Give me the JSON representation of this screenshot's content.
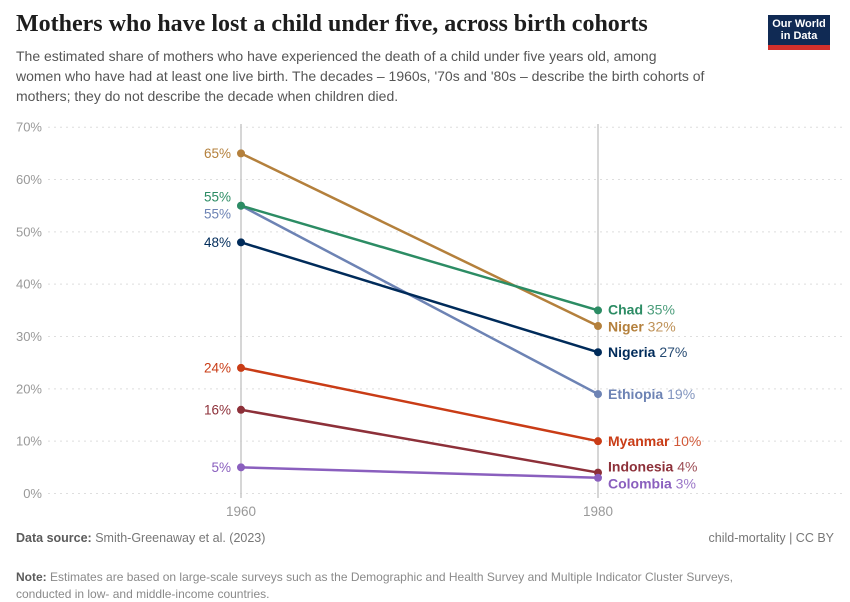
{
  "header": {
    "title": "Mothers who have lost a child under five, across birth cohorts",
    "subtitle": "The estimated share of mothers who have experienced the death of a child under five years old, among\nwomen who have had at least one live birth. The decades – 1960s, '70s and '80s – describe the birth cohorts of\nmothers; they do not describe the decade when children died.",
    "logo": {
      "line1": "Our World",
      "line2": "in Data",
      "bg_color": "#102a54",
      "bar_color": "#d2302c"
    }
  },
  "chart_data": {
    "type": "line",
    "title": "Mothers who have lost a child under five, across birth cohorts",
    "x": [
      1960,
      1980
    ],
    "x_tick_labels": [
      "1960",
      "1980"
    ],
    "series": [
      {
        "name": "Chad",
        "values": [
          55,
          35
        ],
        "color": "#2c8c64"
      },
      {
        "name": "Niger",
        "values": [
          65,
          32
        ],
        "color": "#b4803c"
      },
      {
        "name": "Nigeria",
        "values": [
          48,
          27
        ],
        "color": "#002b5a"
      },
      {
        "name": "Ethiopia",
        "values": [
          55,
          19
        ],
        "color": "#6d83b4"
      },
      {
        "name": "Myanmar",
        "values": [
          24,
          10
        ],
        "color": "#c93c16"
      },
      {
        "name": "Indonesia",
        "values": [
          16,
          4
        ],
        "color": "#8d3039"
      },
      {
        "name": "Colombia",
        "values": [
          5,
          3
        ],
        "color": "#8a5fbe"
      }
    ],
    "ylim": [
      0,
      70
    ],
    "ytick_step": 10,
    "ytick_suffix": "%",
    "value_label_suffix": "%",
    "grid": true,
    "legend_position": "end-of-line-labels",
    "axis_color": "#999999",
    "grid_color": "#dedede",
    "column_line_color": "#c9c9c9"
  },
  "footer": {
    "datasource_label": "Data source:",
    "datasource_value": " Smith-Greenaway et al. (2023)",
    "rights": "child-mortality | CC BY",
    "note_label": "Note:",
    "note_value": " Estimates are based on large-scale surveys such as the Demographic and Health Survey and Multiple Indicator Cluster Surveys,\nconducted in low- and middle-income countries."
  }
}
